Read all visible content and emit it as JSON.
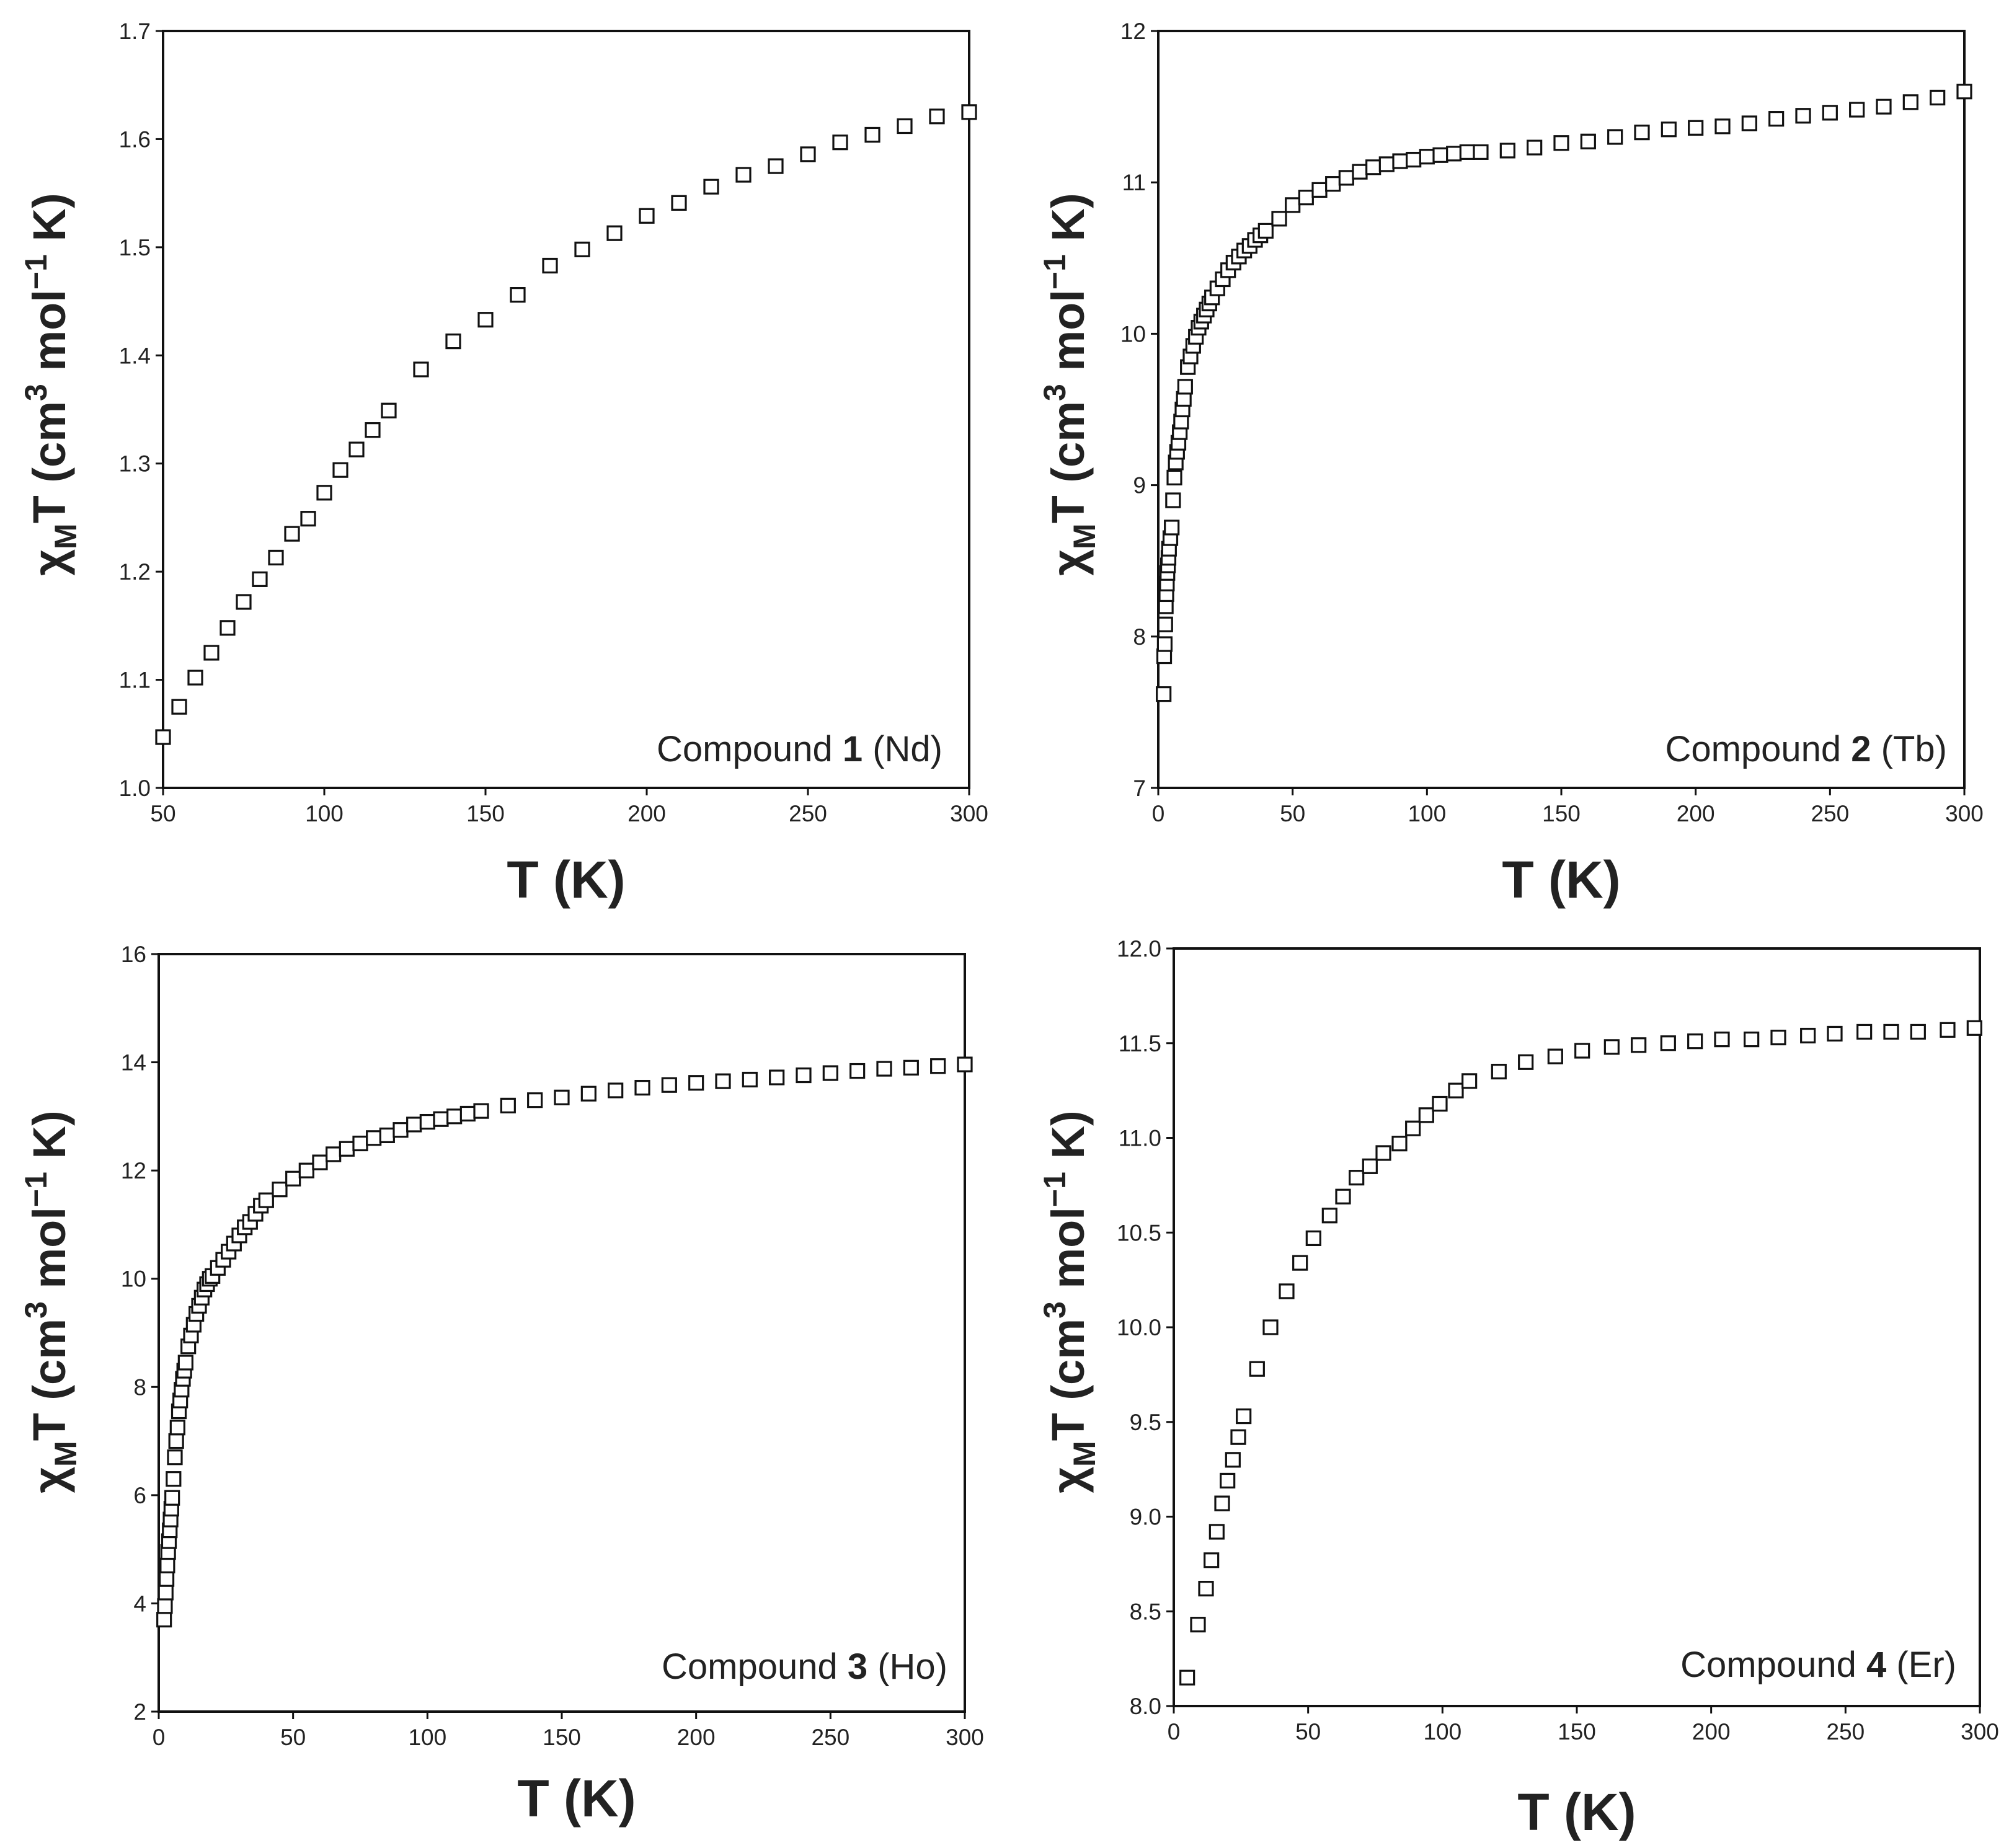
{
  "figure_title": "",
  "chart_data": [
    {
      "type": "scatter",
      "panel": "top-left",
      "annotation": {
        "prefix": "Compound ",
        "number": "1",
        "suffix": " (Nd)"
      },
      "xlabel": "T (K)",
      "ylabel": {
        "chi": "χ",
        "sub": "M",
        "t": "T (cm",
        "sup1": "3",
        "mol": " mol",
        "sup2": "−1",
        "k": " K)"
      },
      "xlim": [
        50,
        300
      ],
      "ylim": [
        1.0,
        1.7
      ],
      "xticks": [
        "50",
        "100",
        "150",
        "200",
        "250",
        "300"
      ],
      "xtick_values": [
        50,
        100,
        150,
        200,
        250,
        300
      ],
      "yticks": [
        "1.0",
        "1.1",
        "1.2",
        "1.3",
        "1.4",
        "1.5",
        "1.6",
        "1.7"
      ],
      "ytick_values": [
        1.0,
        1.1,
        1.2,
        1.3,
        1.4,
        1.5,
        1.6,
        1.7
      ],
      "series": [
        {
          "name": "Compound 1 (Nd)",
          "x": [
            50,
            55,
            60,
            65,
            70,
            75,
            80,
            85,
            90,
            95,
            100,
            105,
            110,
            115,
            120,
            130,
            140,
            150,
            160,
            170,
            180,
            190,
            200,
            210,
            220,
            230,
            240,
            250,
            260,
            270,
            280,
            290,
            300
          ],
          "y": [
            1.047,
            1.075,
            1.102,
            1.125,
            1.148,
            1.172,
            1.193,
            1.213,
            1.235,
            1.249,
            1.273,
            1.294,
            1.313,
            1.331,
            1.349,
            1.387,
            1.413,
            1.433,
            1.456,
            1.483,
            1.498,
            1.513,
            1.529,
            1.541,
            1.556,
            1.567,
            1.575,
            1.586,
            1.597,
            1.604,
            1.612,
            1.621,
            1.625
          ]
        }
      ]
    },
    {
      "type": "scatter",
      "panel": "top-right",
      "annotation": {
        "prefix": "Compound ",
        "number": "2",
        "suffix": " (Tb)"
      },
      "xlabel": "T (K)",
      "ylabel": {
        "chi": "χ",
        "sub": "M",
        "t": "T (cm",
        "sup1": "3",
        "mol": " mol",
        "sup2": "−1",
        "k": " K)"
      },
      "xlim": [
        0,
        300
      ],
      "ylim": [
        7,
        12
      ],
      "xticks": [
        "0",
        "50",
        "100",
        "150",
        "200",
        "250",
        "300"
      ],
      "xtick_values": [
        0,
        50,
        100,
        150,
        200,
        250,
        300
      ],
      "yticks": [
        "7",
        "8",
        "9",
        "10",
        "11",
        "12"
      ],
      "ytick_values": [
        7,
        8,
        9,
        10,
        11,
        12
      ],
      "series": [
        {
          "name": "Compound 2 (Tb)",
          "x": [
            2,
            2.2,
            2.4,
            2.6,
            2.8,
            3,
            3.2,
            3.4,
            3.6,
            3.8,
            4,
            4.5,
            5,
            5.5,
            6,
            6.5,
            7,
            7.5,
            8,
            8.5,
            9,
            9.5,
            10,
            11,
            12,
            13,
            14,
            15,
            16,
            17,
            18,
            19,
            20,
            22,
            24,
            26,
            28,
            30,
            32,
            34,
            36,
            38,
            40,
            45,
            50,
            55,
            60,
            65,
            70,
            75,
            80,
            85,
            90,
            95,
            100,
            105,
            110,
            115,
            120,
            130,
            140,
            150,
            160,
            170,
            180,
            190,
            200,
            210,
            220,
            230,
            240,
            250,
            260,
            270,
            280,
            290,
            300
          ],
          "y": [
            7.62,
            7.87,
            7.95,
            8.08,
            8.2,
            8.28,
            8.35,
            8.42,
            8.47,
            8.52,
            8.58,
            8.65,
            8.72,
            8.9,
            9.05,
            9.15,
            9.22,
            9.28,
            9.35,
            9.42,
            9.5,
            9.57,
            9.65,
            9.78,
            9.85,
            9.92,
            9.98,
            10.04,
            10.08,
            10.12,
            10.16,
            10.2,
            10.24,
            10.3,
            10.36,
            10.42,
            10.47,
            10.51,
            10.55,
            10.58,
            10.62,
            10.65,
            10.68,
            10.76,
            10.85,
            10.9,
            10.95,
            10.99,
            11.03,
            11.07,
            11.1,
            11.12,
            11.14,
            11.15,
            11.17,
            11.18,
            11.19,
            11.2,
            11.2,
            11.21,
            11.23,
            11.26,
            11.27,
            11.3,
            11.33,
            11.35,
            11.36,
            11.37,
            11.39,
            11.42,
            11.44,
            11.46,
            11.48,
            11.5,
            11.53,
            11.56,
            11.6
          ]
        }
      ]
    },
    {
      "type": "scatter",
      "panel": "bottom-left",
      "annotation": {
        "prefix": "Compound ",
        "number": "3",
        "suffix": " (Ho)"
      },
      "xlabel": "T (K)",
      "ylabel": {
        "chi": "χ",
        "sub": "M",
        "t": "T (cm",
        "sup1": "3",
        "mol": " mol",
        "sup2": "−1",
        "k": " K)"
      },
      "xlim": [
        0,
        300
      ],
      "ylim": [
        2,
        16
      ],
      "xticks": [
        "0",
        "50",
        "100",
        "150",
        "200",
        "250",
        "300"
      ],
      "xtick_values": [
        0,
        50,
        100,
        150,
        200,
        250,
        300
      ],
      "yticks": [
        "2",
        "4",
        "6",
        "8",
        "10",
        "12",
        "14",
        "16"
      ],
      "ytick_values": [
        2,
        4,
        6,
        8,
        10,
        12,
        14,
        16
      ],
      "series": [
        {
          "name": "Compound 3 (Ho)",
          "x": [
            2,
            2.3,
            2.6,
            2.9,
            3.2,
            3.5,
            3.8,
            4.1,
            4.4,
            4.7,
            5,
            5.5,
            6,
            6.5,
            7,
            7.5,
            8,
            8.5,
            9,
            9.5,
            10,
            11,
            12,
            13,
            14,
            15,
            16,
            17,
            18,
            19,
            20,
            22,
            24,
            26,
            28,
            30,
            32,
            34,
            36,
            38,
            40,
            45,
            50,
            55,
            60,
            65,
            70,
            75,
            80,
            85,
            90,
            95,
            100,
            105,
            110,
            115,
            120,
            130,
            140,
            150,
            160,
            170,
            180,
            190,
            200,
            210,
            220,
            230,
            240,
            250,
            260,
            270,
            280,
            290,
            300
          ],
          "y": [
            3.7,
            3.95,
            4.2,
            4.45,
            4.7,
            4.95,
            5.15,
            5.35,
            5.55,
            5.75,
            5.95,
            6.3,
            6.7,
            7.0,
            7.25,
            7.55,
            7.75,
            7.95,
            8.15,
            8.3,
            8.45,
            8.75,
            8.95,
            9.15,
            9.35,
            9.5,
            9.65,
            9.8,
            9.9,
            10.0,
            10.05,
            10.2,
            10.35,
            10.5,
            10.65,
            10.8,
            10.95,
            11.05,
            11.2,
            11.35,
            11.45,
            11.65,
            11.85,
            12.0,
            12.15,
            12.3,
            12.4,
            12.5,
            12.6,
            12.65,
            12.75,
            12.85,
            12.9,
            12.95,
            13.0,
            13.05,
            13.1,
            13.2,
            13.3,
            13.35,
            13.42,
            13.48,
            13.53,
            13.58,
            13.62,
            13.65,
            13.68,
            13.72,
            13.76,
            13.8,
            13.84,
            13.88,
            13.9,
            13.93,
            13.96
          ]
        }
      ]
    },
    {
      "type": "scatter",
      "panel": "bottom-right",
      "annotation": {
        "prefix": "Compound ",
        "number": "4",
        "suffix": " (Er)"
      },
      "xlabel": "T (K)",
      "ylabel": {
        "chi": "χ",
        "sub": "M",
        "t": "T (cm",
        "sup1": "3",
        "mol": " mol",
        "sup2": "−1",
        "k": " K)"
      },
      "xlim": [
        0,
        300
      ],
      "ylim": [
        8.0,
        12.0
      ],
      "xticks": [
        "0",
        "50",
        "100",
        "150",
        "200",
        "250",
        "300"
      ],
      "xtick_values": [
        0,
        50,
        100,
        150,
        200,
        250,
        300
      ],
      "yticks": [
        "8.0",
        "8.5",
        "9.0",
        "9.5",
        "10.0",
        "10.5",
        "11.0",
        "11.5",
        "12.0"
      ],
      "ytick_values": [
        8.0,
        8.5,
        9.0,
        9.5,
        10.0,
        10.5,
        11.0,
        11.5,
        12.0
      ],
      "series": [
        {
          "name": "Compound 4 (Er)",
          "x": [
            5,
            9,
            12,
            14,
            16,
            18,
            20,
            22,
            24,
            26,
            31,
            36,
            42,
            47,
            52,
            58,
            63,
            68,
            73,
            78,
            84,
            89,
            94,
            99,
            105,
            110,
            121,
            131,
            142,
            152,
            163,
            173,
            184,
            194,
            204,
            215,
            225,
            236,
            246,
            257,
            267,
            277,
            288,
            298
          ],
          "y": [
            8.15,
            8.43,
            8.62,
            8.77,
            8.92,
            9.07,
            9.19,
            9.3,
            9.42,
            9.53,
            9.78,
            10.0,
            10.19,
            10.34,
            10.47,
            10.59,
            10.69,
            10.79,
            10.85,
            10.92,
            10.97,
            11.05,
            11.12,
            11.18,
            11.25,
            11.3,
            11.35,
            11.4,
            11.43,
            11.46,
            11.48,
            11.49,
            11.5,
            11.51,
            11.52,
            11.52,
            11.53,
            11.54,
            11.55,
            11.56,
            11.56,
            11.56,
            11.57,
            11.58
          ]
        }
      ]
    }
  ]
}
